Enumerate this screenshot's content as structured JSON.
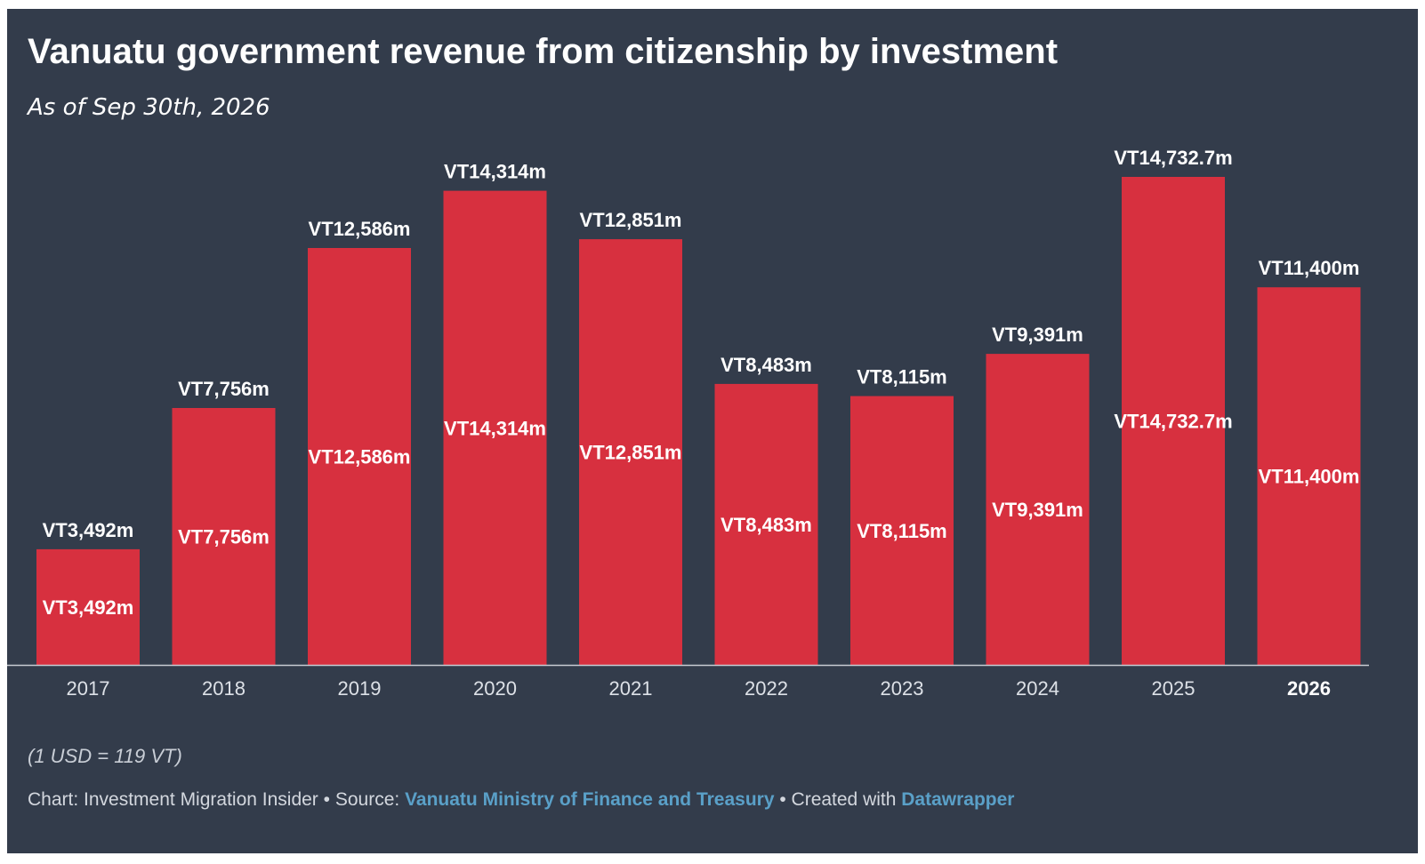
{
  "chart_data": {
    "type": "bar",
    "title": "Vanuatu government revenue from citizenship by investment",
    "subtitle": "As of Sep 30th, 2026",
    "categories": [
      "2017",
      "2018",
      "2019",
      "2020",
      "2021",
      "2022",
      "2023",
      "2024",
      "2025",
      "2026"
    ],
    "values": [
      3492,
      7756,
      12586,
      14314,
      12851,
      8483,
      8115,
      9391,
      14732.7,
      11400
    ],
    "value_labels": [
      "VT3,492m",
      "VT7,756m",
      "VT12,586m",
      "VT14,314m",
      "VT12,851m",
      "VT8,483m",
      "VT8,115m",
      "VT9,391m",
      "VT14,732.7m",
      "VT11,400m"
    ],
    "highlight_category": "2026",
    "xlabel": "",
    "ylabel": "",
    "ylim": [
      0,
      14732.7
    ],
    "grid": false,
    "bar_color": "#d7303f",
    "background_color": "#333c4b"
  },
  "note": "(1 USD = 119 VT)",
  "credits": {
    "chart_prefix": "Chart: Investment Migration Insider",
    "separator": " • ",
    "source_prefix": "Source: ",
    "source_link": "Vanuatu Ministry of Finance and Treasury",
    "created_prefix": "Created with ",
    "created_link": "Datawrapper",
    "link_color": "#5aa0c8"
  }
}
